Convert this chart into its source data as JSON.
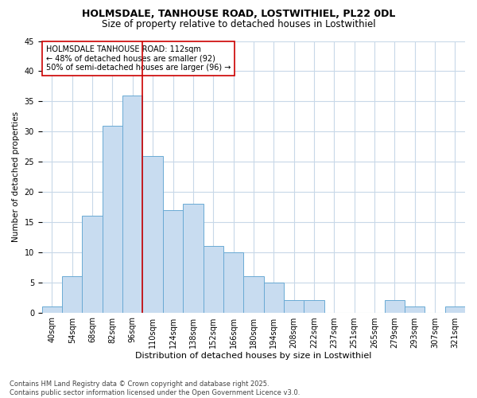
{
  "title1": "HOLMSDALE, TANHOUSE ROAD, LOSTWITHIEL, PL22 0DL",
  "title2": "Size of property relative to detached houses in Lostwithiel",
  "xlabel": "Distribution of detached houses by size in Lostwithiel",
  "ylabel": "Number of detached properties",
  "bin_labels": [
    "40sqm",
    "54sqm",
    "68sqm",
    "82sqm",
    "96sqm",
    "110sqm",
    "124sqm",
    "138sqm",
    "152sqm",
    "166sqm",
    "180sqm",
    "194sqm",
    "208sqm",
    "222sqm",
    "237sqm",
    "251sqm",
    "265sqm",
    "279sqm",
    "293sqm",
    "307sqm",
    "321sqm"
  ],
  "bar_heights": [
    1,
    6,
    16,
    31,
    36,
    26,
    17,
    18,
    11,
    10,
    6,
    5,
    2,
    2,
    0,
    0,
    0,
    2,
    1,
    0,
    1
  ],
  "bar_color": "#c8dcf0",
  "bar_edge_color": "#6aaad4",
  "grid_color": "#c8d8e8",
  "background_color": "#ffffff",
  "axes_bg_color": "#ffffff",
  "vline_color": "#cc0000",
  "vline_position": 4.5,
  "annotation_text": "HOLMSDALE TANHOUSE ROAD: 112sqm\n← 48% of detached houses are smaller (92)\n50% of semi-detached houses are larger (96) →",
  "annotation_box_facecolor": "#ffffff",
  "annotation_box_edgecolor": "#cc0000",
  "footer_text": "Contains HM Land Registry data © Crown copyright and database right 2025.\nContains public sector information licensed under the Open Government Licence v3.0.",
  "ylim_max": 45,
  "yticks": [
    0,
    5,
    10,
    15,
    20,
    25,
    30,
    35,
    40,
    45
  ],
  "title1_fontsize": 9,
  "title2_fontsize": 8.5,
  "ylabel_fontsize": 7.5,
  "xlabel_fontsize": 8,
  "tick_fontsize": 7,
  "annot_fontsize": 7,
  "footer_fontsize": 6
}
